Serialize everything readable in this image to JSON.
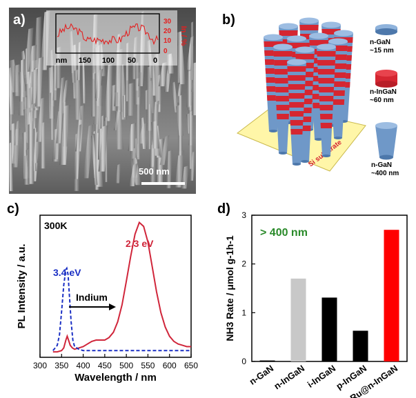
{
  "panels": {
    "a": {
      "label": "a)",
      "inset": {
        "x_ticks": [
          "nm",
          "150",
          "100",
          "50",
          "0"
        ],
        "y_ticks": [
          "30",
          "20",
          "10",
          "0"
        ],
        "y_label": "In / %",
        "profile_color": "#e32020"
      },
      "scale_bar": "500 nm"
    },
    "b": {
      "label": "b)",
      "legend": [
        {
          "name": "n-GaN",
          "size": "~15 nm"
        },
        {
          "name": "n-InGaN",
          "size": "~60 nm"
        },
        {
          "name": "n-GaN",
          "size": "~400 nm"
        }
      ],
      "substrate_label": "Si substrate",
      "colors": {
        "gan": "#6f98c8",
        "ingan": "#d52631",
        "substrate": "#fff6a8"
      }
    }
  },
  "chart_data": [
    {
      "panel": "c)",
      "type": "line",
      "xlabel": "Wavelength / nm",
      "ylabel": "PL Intensity / a.u.",
      "xlim": [
        300,
        650
      ],
      "x_ticks": [
        300,
        350,
        400,
        450,
        500,
        550,
        600,
        650
      ],
      "annotations": [
        "300K",
        "3.4 eV",
        "2.3 eV",
        "Indium"
      ],
      "series": [
        {
          "style": "solid",
          "color": "#d0253a",
          "x": [
            330,
            340,
            350,
            355,
            360,
            363,
            366,
            370,
            375,
            380,
            390,
            400,
            410,
            420,
            430,
            440,
            450,
            460,
            470,
            480,
            490,
            500,
            510,
            520,
            530,
            540,
            550,
            560,
            570,
            580,
            590,
            600,
            610,
            620,
            630,
            640,
            650
          ],
          "y": [
            0.01,
            0.01,
            0.02,
            0.04,
            0.1,
            0.13,
            0.1,
            0.06,
            0.04,
            0.03,
            0.04,
            0.05,
            0.07,
            0.09,
            0.1,
            0.1,
            0.1,
            0.12,
            0.16,
            0.24,
            0.37,
            0.55,
            0.74,
            0.91,
            1.0,
            0.97,
            0.85,
            0.66,
            0.47,
            0.31,
            0.2,
            0.13,
            0.09,
            0.07,
            0.06,
            0.05,
            0.05
          ]
        },
        {
          "style": "dashed",
          "color": "#1a2fc4",
          "x": [
            330,
            340,
            345,
            350,
            355,
            360,
            362,
            365,
            368,
            372,
            376,
            380,
            390,
            400,
            420,
            450,
            500,
            550,
            600,
            650
          ],
          "y": [
            0.02,
            0.06,
            0.14,
            0.32,
            0.52,
            0.64,
            0.65,
            0.6,
            0.45,
            0.24,
            0.1,
            0.05,
            0.03,
            0.02,
            0.02,
            0.02,
            0.02,
            0.02,
            0.02,
            0.02
          ]
        }
      ]
    },
    {
      "panel": "d)",
      "type": "bar",
      "ylabel": "NH3 Rate / μmol g-1h-1",
      "ylim": [
        0,
        3
      ],
      "y_ticks": [
        0,
        1,
        2,
        3
      ],
      "annotation": "> 400 nm",
      "categories": [
        "n-GaN",
        "n-InGaN",
        "i-InGaN",
        "p-InGaN",
        "Ru@n-InGaN"
      ],
      "values": [
        0.02,
        1.7,
        1.31,
        0.63,
        2.7
      ],
      "colors": [
        "#000000",
        "#c8c8c8",
        "#000000",
        "#000000",
        "#ff0000"
      ]
    }
  ]
}
